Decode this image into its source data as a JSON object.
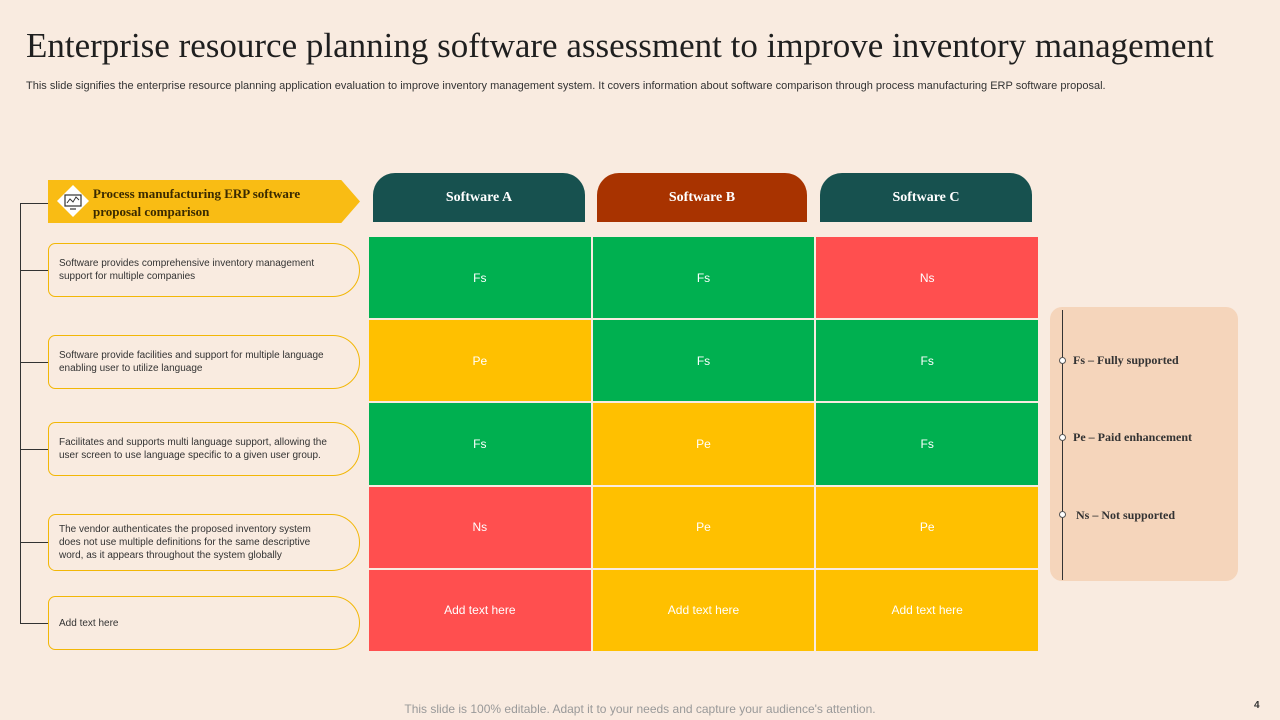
{
  "title": "Enterprise resource planning software assessment to improve inventory management",
  "subtitle": "This slide signifies the enterprise resource planning application evaluation to improve inventory management system. It covers information about software comparison through process manufacturing ERP software proposal.",
  "banner": {
    "label": "Process manufacturing ERP software proposal comparison",
    "icon": "monitor-chart-icon"
  },
  "criteria": [
    "Software provides comprehensive inventory management support for multiple companies",
    "Software provide facilities and support for multiple language enabling user to utilize language",
    "Facilitates and supports multi language support, allowing the user screen to use language specific to a given user group.",
    "The vendor authenticates the proposed inventory system does not use multiple definitions for the same descriptive word, as it appears throughout the system globally",
    "Add text here"
  ],
  "software": [
    {
      "name": "Software A",
      "color": "#17514f"
    },
    {
      "name": "Software B",
      "color": "#a83300"
    },
    {
      "name": "Software C",
      "color": "#17514f"
    }
  ],
  "grid": [
    [
      "Fs",
      "Fs",
      "Ns"
    ],
    [
      "Pe",
      "Fs",
      "Fs"
    ],
    [
      "Fs",
      "Pe",
      "Fs"
    ],
    [
      "Ns",
      "Pe",
      "Pe"
    ],
    [
      "Add text here",
      "Add text here",
      "Add text here"
    ]
  ],
  "last_row_colors": [
    "Ns",
    "Pe",
    "Pe"
  ],
  "status_colors": {
    "Fs": "#00b050",
    "Pe": "#ffc000",
    "Ns": "#ff4f4f"
  },
  "legend": [
    "Fs – Fully supported",
    "Pe – Paid  enhancement",
    "Ns – Not  supported"
  ],
  "footer": "This slide is 100% editable. Adapt it to your needs and capture your audience's attention.",
  "page_number": "4"
}
